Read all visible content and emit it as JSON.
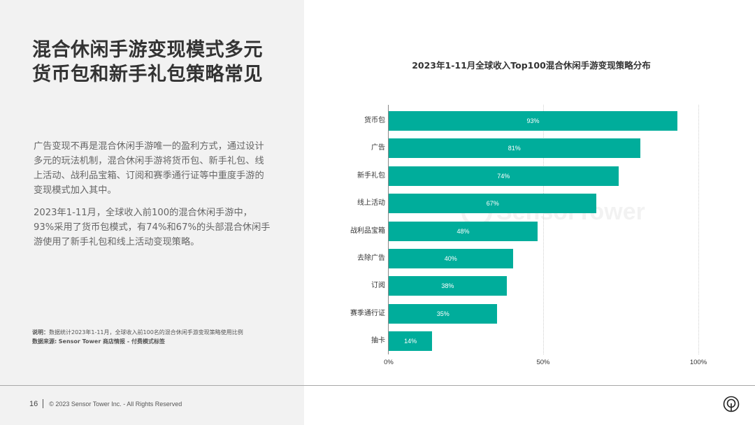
{
  "left": {
    "title_line1": "混合休闲手游变现模式多元",
    "title_line2": "货币包和新手礼包策略常见",
    "paragraph1": "广告变现不再是混合休闲手游唯一的盈利方式，通过设计多元的玩法机制，混合休闲手游将货币包、新手礼包、线上活动、战利品宝箱、订阅和赛季通行证等中重度手游的变现模式加入其中。",
    "paragraph2": "2023年1-11月，全球收入前100的混合休闲手游中，93%采用了货币包模式，有74%和67%的头部混合休闲手游使用了新手礼包和线上活动变现策略。",
    "note_label": "说明：",
    "note_text": "数据统计2023年1-11月，全球收入前100名的混合休闲手游变现策略使用比例",
    "source_label": "数据来源:",
    "source_text": "Sensor Tower 商店情报 - 付费模式标签"
  },
  "footer": {
    "page_number": "16",
    "copyright": "© 2023 Sensor Tower Inc. - All Rights Reserved",
    "logo_icon": "sensor-tower-logo"
  },
  "watermark": "SensorTower",
  "colors": {
    "bar": "#00ad9b",
    "left_panel_bg": "#f2f2f2"
  },
  "chart_data": {
    "type": "bar",
    "orientation": "horizontal",
    "title": "2023年1-11月全球收入Top100混合休闲手游变现策略分布",
    "categories": [
      "货币包",
      "广告",
      "新手礼包",
      "线上活动",
      "战利品宝箱",
      "去除广告",
      "订阅",
      "赛季通行证",
      "抽卡"
    ],
    "values": [
      93,
      81,
      74,
      67,
      48,
      40,
      38,
      35,
      14
    ],
    "value_labels": [
      "93%",
      "81%",
      "74%",
      "67%",
      "48%",
      "40%",
      "38%",
      "35%",
      "14%"
    ],
    "xlabel": "",
    "ylabel": "",
    "xlim": [
      0,
      100
    ],
    "x_ticks": [
      "0%",
      "50%",
      "100%"
    ],
    "grid": true,
    "legend": null,
    "unit": "%"
  }
}
